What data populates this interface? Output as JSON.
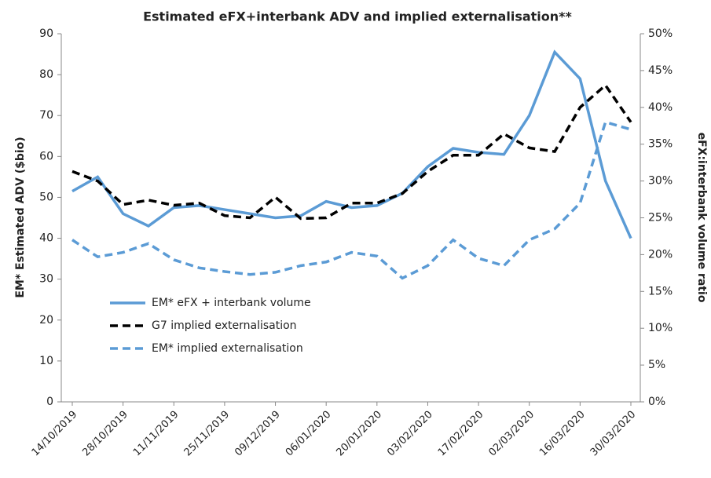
{
  "chart_data": {
    "type": "line",
    "title": "Estimated eFX+interbank ADV and implied externalisation**",
    "y_label": "EM* Estimated ADV ($bio)",
    "y2_label": "eFX:interbank volume ratio",
    "categories": [
      "14/10/2019",
      null,
      "28/10/2019",
      null,
      "11/11/2019",
      null,
      "25/11/2019",
      null,
      "09/12/2019",
      null,
      "06/01/2020",
      null,
      "20/01/2020",
      null,
      "03/02/2020",
      null,
      "17/02/2020",
      null,
      "02/03/2020",
      null,
      "16/03/2020",
      null,
      "30/03/2020"
    ],
    "series": [
      {
        "name": "EM* eFX + interbank volume",
        "color": "#5b9bd5",
        "dash": false,
        "values": [
          51.5,
          55,
          46,
          43,
          47.5,
          48,
          47,
          46,
          45,
          45.5,
          49,
          47.5,
          48,
          51,
          57.5,
          62,
          61,
          60.5,
          70,
          85.5,
          79,
          54,
          40
        ]
      },
      {
        "name": "G7 implied externalisation",
        "color": "#000000",
        "dash": true,
        "axis": "y2",
        "values": [
          31.3,
          30,
          26.8,
          27.4,
          26.7,
          27,
          25.3,
          25,
          27.8,
          24.9,
          25,
          27,
          27,
          28.3,
          31.3,
          33.5,
          33.5,
          36.4,
          34.5,
          34,
          40,
          43,
          38
        ]
      },
      {
        "name": "EM* implied externalisation",
        "color": "#5b9bd5",
        "dash": true,
        "axis": "y2",
        "values": [
          22,
          19.7,
          20.3,
          21.5,
          19.3,
          18.2,
          17.7,
          17.3,
          17.6,
          18.5,
          19,
          20.3,
          19.8,
          16.8,
          18.5,
          22,
          19.5,
          18.5,
          22,
          23.5,
          27,
          38,
          37
        ]
      }
    ],
    "ylim": [
      0,
      90
    ],
    "yticks": [
      0,
      10,
      20,
      30,
      40,
      50,
      60,
      70,
      80,
      90
    ],
    "y2lim": [
      0,
      50
    ],
    "y2ticks": [
      {
        "value": 0,
        "label": "0%"
      },
      {
        "value": 5,
        "label": "5%"
      },
      {
        "value": 10,
        "label": "10%"
      },
      {
        "value": 15,
        "label": "15%"
      },
      {
        "value": 20,
        "label": "20%"
      },
      {
        "value": 25,
        "label": "25%"
      },
      {
        "value": 30,
        "label": "30%"
      },
      {
        "value": 35,
        "label": "35%"
      },
      {
        "value": 40,
        "label": "40%"
      },
      {
        "value": 45,
        "label": "45%"
      },
      {
        "value": 50,
        "label": "50%"
      }
    ],
    "grid": false,
    "legend": "left"
  }
}
